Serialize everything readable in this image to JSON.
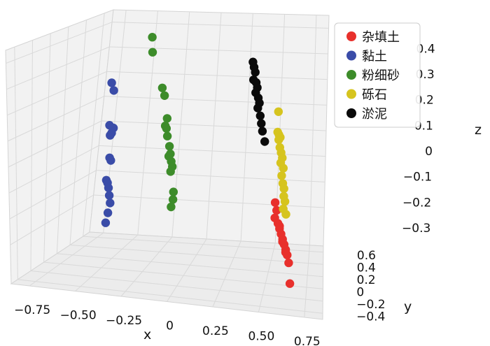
{
  "chart_data": {
    "type": "scatter",
    "title": "",
    "xlabel": "x",
    "ylabel": "y",
    "zlabel": "z",
    "projection": "3d",
    "grid": true,
    "legend_position": "top-right",
    "x_ticks": [
      "−0.75",
      "−0.50",
      "−0.25",
      "0",
      "0.25",
      "0.50",
      "0.75"
    ],
    "y_ticks": [
      "−0.4",
      "−0.2",
      "0",
      "0.2",
      "0.4",
      "0.6"
    ],
    "z_ticks": [
      "0.4",
      "0.3",
      "0.2",
      "0.1",
      "0",
      "−0.1",
      "−0.2",
      "−0.3"
    ],
    "series": [
      {
        "name": "杂填土",
        "color": "#e8302c",
        "points": [
          [
            0.55,
            -0.05,
            -0.12
          ],
          [
            0.56,
            -0.05,
            -0.15
          ],
          [
            0.55,
            -0.05,
            -0.18
          ],
          [
            0.57,
            -0.05,
            -0.2
          ],
          [
            0.58,
            -0.05,
            -0.22
          ],
          [
            0.59,
            -0.05,
            -0.24
          ],
          [
            0.6,
            -0.05,
            -0.26
          ],
          [
            0.61,
            -0.05,
            -0.28
          ],
          [
            0.62,
            -0.05,
            -0.3
          ],
          [
            0.63,
            -0.05,
            -0.32
          ],
          [
            0.64,
            -0.05,
            -0.35
          ],
          [
            0.6,
            -0.05,
            -0.27
          ],
          [
            0.58,
            -0.05,
            -0.21
          ],
          [
            0.62,
            -0.05,
            -0.31
          ],
          [
            0.65,
            -0.05,
            -0.43
          ]
        ]
      },
      {
        "name": "黏土",
        "color": "#3a4ca8",
        "points": [
          [
            -0.72,
            0.55,
            0.18
          ],
          [
            -0.7,
            0.55,
            0.15
          ],
          [
            -0.71,
            0.55,
            0.01
          ],
          [
            -0.69,
            0.55,
            -0.02
          ],
          [
            -0.68,
            0.55,
            0.0
          ],
          [
            -0.7,
            0.55,
            -0.03
          ],
          [
            -0.69,
            0.55,
            -0.12
          ],
          [
            -0.68,
            0.55,
            -0.13
          ],
          [
            -0.7,
            0.55,
            -0.21
          ],
          [
            -0.69,
            0.55,
            -0.22
          ],
          [
            -0.68,
            0.55,
            -0.24
          ],
          [
            -0.67,
            0.55,
            -0.27
          ],
          [
            -0.66,
            0.55,
            -0.3
          ],
          [
            -0.67,
            0.55,
            -0.34
          ],
          [
            -0.68,
            0.55,
            -0.38
          ]
        ]
      },
      {
        "name": "粉细砂",
        "color": "#3d8c2a",
        "points": [
          [
            -0.45,
            0.55,
            0.37
          ],
          [
            -0.44,
            0.55,
            0.31
          ],
          [
            -0.35,
            0.55,
            0.17
          ],
          [
            -0.33,
            0.55,
            0.14
          ],
          [
            -0.3,
            0.55,
            0.05
          ],
          [
            -0.31,
            0.55,
            0.02
          ],
          [
            -0.3,
            0.55,
            0.01
          ],
          [
            -0.29,
            0.55,
            -0.02
          ],
          [
            -0.27,
            0.55,
            -0.06
          ],
          [
            -0.26,
            0.55,
            -0.09
          ],
          [
            -0.27,
            0.55,
            -0.1
          ],
          [
            -0.25,
            0.55,
            -0.12
          ],
          [
            -0.24,
            0.55,
            -0.14
          ],
          [
            -0.25,
            0.55,
            -0.16
          ],
          [
            -0.22,
            0.55,
            -0.24
          ],
          [
            -0.22,
            0.55,
            -0.27
          ],
          [
            -0.23,
            0.55,
            -0.3
          ]
        ]
      },
      {
        "name": "砾石",
        "color": "#d6c41e",
        "points": [
          [
            0.5,
            0.55,
            0.1
          ],
          [
            0.5,
            0.55,
            0.02
          ],
          [
            0.51,
            0.55,
            0.01
          ],
          [
            0.52,
            0.55,
            0.0
          ],
          [
            0.51,
            0.55,
            -0.01
          ],
          [
            0.52,
            0.55,
            -0.04
          ],
          [
            0.53,
            0.55,
            -0.06
          ],
          [
            0.54,
            0.55,
            -0.08
          ],
          [
            0.53,
            0.55,
            -0.1
          ],
          [
            0.55,
            0.55,
            -0.12
          ],
          [
            0.54,
            0.55,
            -0.15
          ],
          [
            0.55,
            0.55,
            -0.18
          ],
          [
            0.56,
            0.55,
            -0.2
          ],
          [
            0.56,
            0.55,
            -0.23
          ],
          [
            0.57,
            0.55,
            -0.25
          ],
          [
            0.56,
            0.55,
            -0.28
          ],
          [
            0.58,
            0.55,
            -0.3
          ]
        ]
      },
      {
        "name": "淤泥",
        "color": "#0a0a0a",
        "points": [
          [
            0.3,
            0.55,
            0.29
          ],
          [
            0.31,
            0.55,
            0.27
          ],
          [
            0.32,
            0.55,
            0.25
          ],
          [
            0.31,
            0.55,
            0.22
          ],
          [
            0.33,
            0.55,
            0.21
          ],
          [
            0.34,
            0.55,
            0.19
          ],
          [
            0.33,
            0.55,
            0.17
          ],
          [
            0.35,
            0.55,
            0.15
          ],
          [
            0.36,
            0.55,
            0.13
          ],
          [
            0.35,
            0.55,
            0.11
          ],
          [
            0.37,
            0.55,
            0.08
          ],
          [
            0.38,
            0.55,
            0.05
          ],
          [
            0.39,
            0.55,
            0.02
          ],
          [
            0.41,
            0.55,
            -0.02
          ]
        ]
      }
    ]
  }
}
